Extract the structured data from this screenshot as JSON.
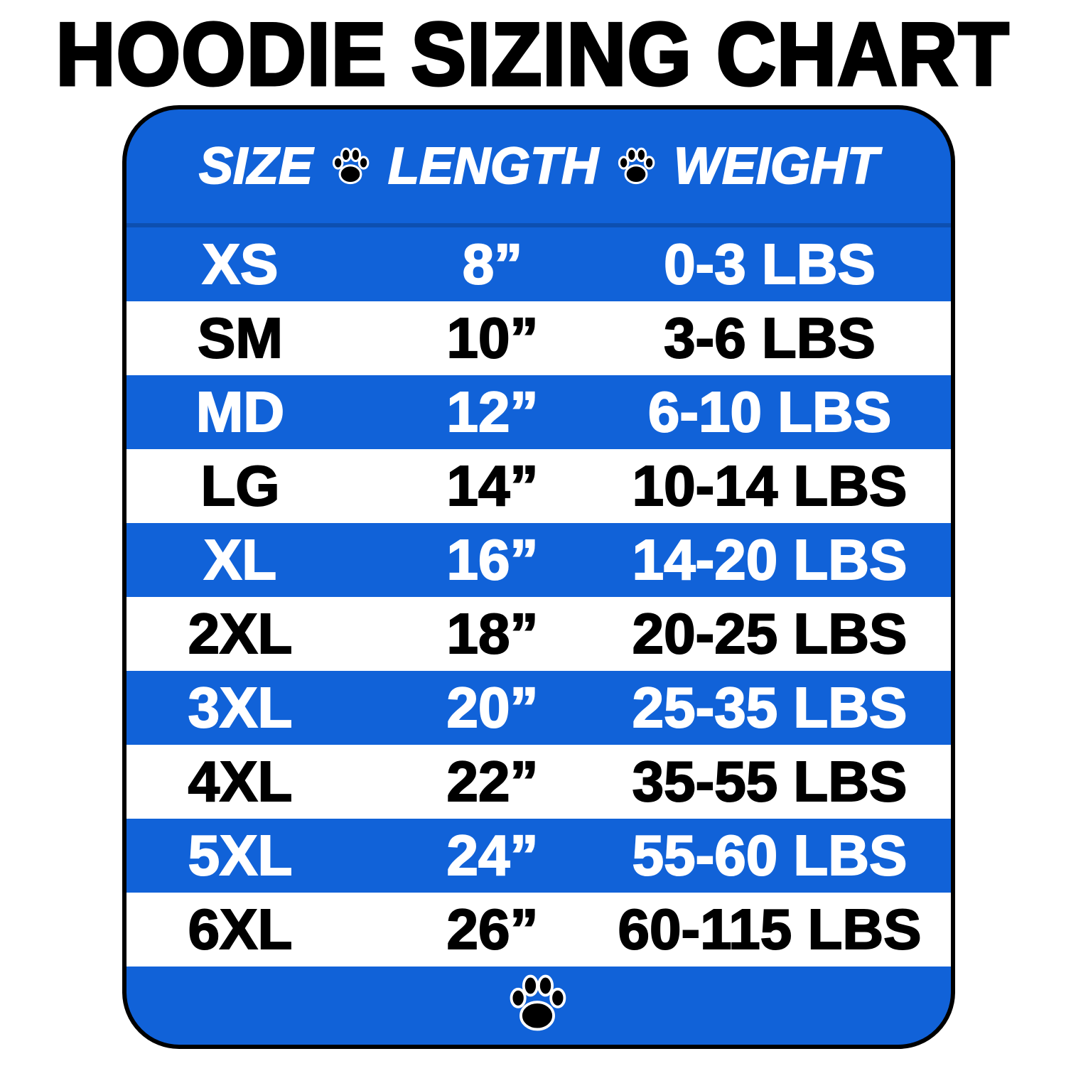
{
  "title": "HOODIE SIZING CHART",
  "colors": {
    "blue": "#1162d8",
    "white": "#ffffff",
    "black": "#000000"
  },
  "header": {
    "size": "SIZE",
    "length": "LENGTH",
    "weight": "WEIGHT",
    "separator_icon": "paw-icon"
  },
  "rows": [
    {
      "size": "XS",
      "length": "8”",
      "weight": "0-3 LBS"
    },
    {
      "size": "SM",
      "length": "10”",
      "weight": "3-6 LBS"
    },
    {
      "size": "MD",
      "length": "12”",
      "weight": "6-10 LBS"
    },
    {
      "size": "LG",
      "length": "14”",
      "weight": "10-14 LBS"
    },
    {
      "size": "XL",
      "length": "16”",
      "weight": "14-20 LBS"
    },
    {
      "size": "2XL",
      "length": "18”",
      "weight": "20-25 LBS"
    },
    {
      "size": "3XL",
      "length": "20”",
      "weight": "25-35 LBS"
    },
    {
      "size": "4XL",
      "length": "22”",
      "weight": "35-55 LBS"
    },
    {
      "size": "5XL",
      "length": "24”",
      "weight": "55-60 LBS"
    },
    {
      "size": "6XL",
      "length": "26”",
      "weight": "60-115 LBS"
    }
  ],
  "footer": {
    "icon": "paw-icon"
  }
}
